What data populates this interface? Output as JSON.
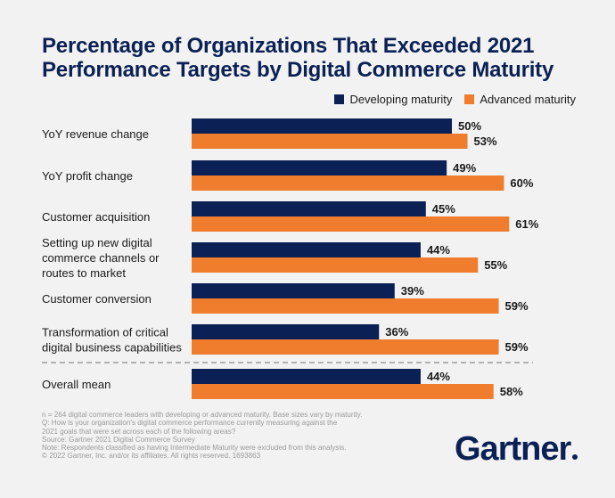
{
  "title_lines": [
    "Percentage of Organizations That Exceeded 2021",
    "Performance Targets by Digital Commerce Maturity"
  ],
  "logo_text": "Gartner",
  "colors": {
    "developing": "#0b2155",
    "advanced": "#f07c2d",
    "text": "#1a1a1a",
    "divider": "#8a8a8a"
  },
  "chart_data": {
    "type": "bar",
    "orientation": "horizontal",
    "title": "Percentage of Organizations That Exceeded 2021 Performance Targets by Digital Commerce Maturity",
    "categories": [
      [
        "YoY revenue change"
      ],
      [
        "YoY profit change"
      ],
      [
        "Customer acquisition"
      ],
      [
        "Setting up new digital",
        "commerce channels or",
        "routes to market"
      ],
      [
        "Customer conversion"
      ],
      [
        "Transformation of critical",
        "digital business capabilities"
      ],
      [
        "Overall mean"
      ]
    ],
    "series": [
      {
        "name": "Developing maturity",
        "values": [
          50,
          49,
          45,
          44,
          39,
          36,
          44
        ]
      },
      {
        "name": "Advanced maturity",
        "values": [
          53,
          60,
          61,
          55,
          59,
          59,
          58
        ]
      }
    ],
    "value_suffix": "%",
    "xlim": [
      0,
      100
    ],
    "legend_position": "top-right"
  },
  "notes": [
    "n = 264 digital commerce leaders with developing or advanced maturity. Base sizes vary by maturity.",
    "Q: How is your organization's digital commerce performance currently measuring against the",
    "2021 goals that were set across each of the following areas?",
    "Source: Gartner 2021 Digital Commerce Survey",
    "Note: Respondents classified as having Intermediate Maturity were excluded from this analysis.",
    "© 2022 Gartner, Inc. and/or its affiliates. All rights reserved. 1693863"
  ]
}
